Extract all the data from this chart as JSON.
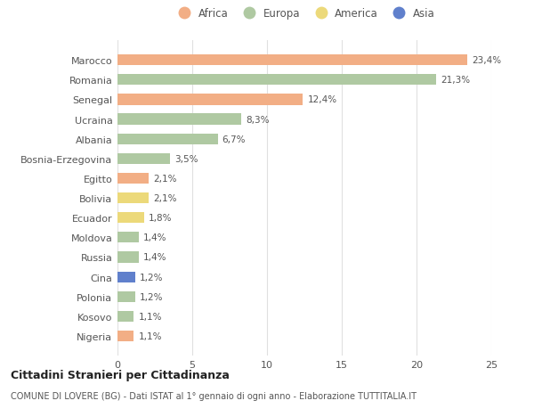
{
  "categories": [
    "Nigeria",
    "Kosovo",
    "Polonia",
    "Cina",
    "Russia",
    "Moldova",
    "Ecuador",
    "Bolivia",
    "Egitto",
    "Bosnia-Erzegovina",
    "Albania",
    "Ucraina",
    "Senegal",
    "Romania",
    "Marocco"
  ],
  "values": [
    1.1,
    1.1,
    1.2,
    1.2,
    1.4,
    1.4,
    1.8,
    2.1,
    2.1,
    3.5,
    6.7,
    8.3,
    12.4,
    21.3,
    23.4
  ],
  "labels": [
    "1,1%",
    "1,1%",
    "1,2%",
    "1,2%",
    "1,4%",
    "1,4%",
    "1,8%",
    "2,1%",
    "2,1%",
    "3,5%",
    "6,7%",
    "8,3%",
    "12,4%",
    "21,3%",
    "23,4%"
  ],
  "continent_colors": {
    "Africa": "#F2AE85",
    "Europa": "#AFC9A2",
    "America": "#ECD97A",
    "Asia": "#6080CC"
  },
  "bar_continents": [
    "Africa",
    "Europa",
    "Europa",
    "Asia",
    "Europa",
    "Europa",
    "America",
    "America",
    "Africa",
    "Europa",
    "Europa",
    "Europa",
    "Africa",
    "Europa",
    "Africa"
  ],
  "bg_color": "#ffffff",
  "grid_color": "#e0e0e0",
  "title": "Cittadini Stranieri per Cittadinanza",
  "subtitle": "COMUNE DI LOVERE (BG) - Dati ISTAT al 1° gennaio di ogni anno - Elaborazione TUTTITALIA.IT",
  "xlim": [
    0,
    25
  ],
  "xticks": [
    0,
    5,
    10,
    15,
    20,
    25
  ],
  "legend_labels": [
    "Africa",
    "Europa",
    "America",
    "Asia"
  ],
  "legend_colors": [
    "#F2AE85",
    "#AFC9A2",
    "#ECD97A",
    "#6080CC"
  ]
}
